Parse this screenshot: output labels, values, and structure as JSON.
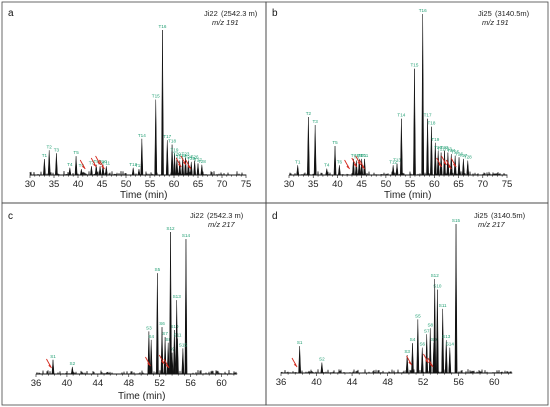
{
  "chart_data": [
    {
      "panel": "a",
      "type": "line",
      "sample": "Ji22",
      "depth": "(2542.3 m)",
      "ion": "m/z 191",
      "xlabel": "Time (min)",
      "xlim": [
        30,
        75
      ],
      "x_ticks": [
        30,
        35,
        40,
        45,
        50,
        55,
        60,
        65,
        70,
        75
      ],
      "x_tick_labels": [
        "30",
        "35",
        "40",
        "45",
        "50",
        "55",
        "60",
        "65",
        "70",
        "75"
      ],
      "y_scale": "relative abundance",
      "peaks": [
        {
          "label": "T1",
          "x": 33.0,
          "y": 0.11
        },
        {
          "label": "T2",
          "x": 34.0,
          "y": 0.17
        },
        {
          "label": "T3",
          "x": 35.5,
          "y": 0.15
        },
        {
          "label": "T4",
          "x": 38.3,
          "y": 0.05
        },
        {
          "label": "T5",
          "x": 39.6,
          "y": 0.13
        },
        {
          "label": "T6",
          "x": 40.7,
          "y": 0.04
        },
        {
          "label": "T7",
          "x": 42.8,
          "y": 0.06
        },
        {
          "label": "T8",
          "x": 43.8,
          "y": 0.07
        },
        {
          "label": "T9",
          "x": 44.6,
          "y": 0.06
        },
        {
          "label": "T10",
          "x": 45.2,
          "y": 0.07
        },
        {
          "label": "T11",
          "x": 45.9,
          "y": 0.06
        },
        {
          "label": "T12",
          "x": 51.5,
          "y": 0.05
        },
        {
          "label": "T13",
          "x": 52.7,
          "y": 0.04
        },
        {
          "label": "T14",
          "x": 53.3,
          "y": 0.25
        },
        {
          "label": "T15",
          "x": 56.2,
          "y": 0.52
        },
        {
          "label": "T16",
          "x": 57.6,
          "y": 1.0
        },
        {
          "label": "T17",
          "x": 58.6,
          "y": 0.24
        },
        {
          "label": "T18",
          "x": 59.6,
          "y": 0.21
        },
        {
          "label": "T19",
          "x": 60.1,
          "y": 0.15
        },
        {
          "label": "T20",
          "x": 60.6,
          "y": 0.12
        },
        {
          "label": "T21",
          "x": 61.2,
          "y": 0.1
        },
        {
          "label": "T22",
          "x": 61.8,
          "y": 0.11
        },
        {
          "label": "T23",
          "x": 62.4,
          "y": 0.12
        },
        {
          "label": "T24",
          "x": 63.0,
          "y": 0.1
        },
        {
          "label": "T25",
          "x": 63.6,
          "y": 0.09
        },
        {
          "label": "T26",
          "x": 64.3,
          "y": 0.1
        },
        {
          "label": "T27",
          "x": 65.0,
          "y": 0.08
        },
        {
          "label": "T28",
          "x": 65.8,
          "y": 0.07
        }
      ],
      "arrows_at": [
        41.5,
        43.8,
        44.7,
        45.5,
        61.5,
        62.5,
        63.5
      ]
    },
    {
      "panel": "b",
      "type": "line",
      "sample": "Ji25",
      "depth": "(3140.5m)",
      "ion": "m/z 191",
      "xlabel": "Time (min)",
      "xlim": [
        30,
        75
      ],
      "x_ticks": [
        30,
        35,
        40,
        45,
        50,
        55,
        60,
        65,
        70,
        75
      ],
      "x_tick_labels": [
        "30",
        "35",
        "40",
        "45",
        "50",
        "55",
        "60",
        "65",
        "70",
        "75"
      ],
      "y_scale": "relative abundance",
      "peaks": [
        {
          "label": "T1",
          "x": 31.8,
          "y": 0.06
        },
        {
          "label": "T2",
          "x": 34.0,
          "y": 0.36
        },
        {
          "label": "T3",
          "x": 35.4,
          "y": 0.31
        },
        {
          "label": "T4",
          "x": 37.8,
          "y": 0.04
        },
        {
          "label": "T5",
          "x": 39.5,
          "y": 0.18
        },
        {
          "label": "T6",
          "x": 40.4,
          "y": 0.06
        },
        {
          "label": "T7",
          "x": 43.3,
          "y": 0.1
        },
        {
          "label": "T8",
          "x": 43.9,
          "y": 0.09
        },
        {
          "label": "T9",
          "x": 44.5,
          "y": 0.1
        },
        {
          "label": "T10",
          "x": 45.0,
          "y": 0.1
        },
        {
          "label": "T11",
          "x": 45.6,
          "y": 0.1
        },
        {
          "label": "T12",
          "x": 51.5,
          "y": 0.06
        },
        {
          "label": "T13",
          "x": 52.3,
          "y": 0.07
        },
        {
          "label": "T14",
          "x": 53.2,
          "y": 0.35
        },
        {
          "label": "T15",
          "x": 55.9,
          "y": 0.66
        },
        {
          "label": "T16",
          "x": 57.6,
          "y": 1.0
        },
        {
          "label": "T17",
          "x": 58.6,
          "y": 0.35
        },
        {
          "label": "T18",
          "x": 59.4,
          "y": 0.3
        },
        {
          "label": "T19",
          "x": 60.2,
          "y": 0.2
        },
        {
          "label": "T20",
          "x": 60.8,
          "y": 0.15
        },
        {
          "label": "T21",
          "x": 61.4,
          "y": 0.14
        },
        {
          "label": "T22",
          "x": 62.1,
          "y": 0.15
        },
        {
          "label": "T23",
          "x": 62.8,
          "y": 0.14
        },
        {
          "label": "T24",
          "x": 63.5,
          "y": 0.13
        },
        {
          "label": "T25",
          "x": 64.3,
          "y": 0.12
        },
        {
          "label": "T26",
          "x": 65.1,
          "y": 0.11
        },
        {
          "label": "T27",
          "x": 66.0,
          "y": 0.1
        },
        {
          "label": "T28",
          "x": 66.9,
          "y": 0.09
        }
      ],
      "arrows_at": [
        42.5,
        44.0,
        44.8,
        45.6,
        61.5,
        62.5,
        63.5,
        64.5
      ]
    },
    {
      "panel": "c",
      "type": "line",
      "sample": "Ji22",
      "depth": "(2542.3 m)",
      "ion": "m/z 217",
      "xlabel": "Time (min)",
      "xlim": [
        36,
        62
      ],
      "x_ticks": [
        36,
        40,
        44,
        48,
        52,
        56,
        60
      ],
      "x_tick_labels": [
        "36",
        "40",
        "44",
        "48",
        "52",
        "56",
        "60"
      ],
      "y_scale": "relative abundance",
      "peaks": [
        {
          "label": "S1",
          "x": 38.2,
          "y": 0.1
        },
        {
          "label": "S2",
          "x": 40.7,
          "y": 0.05
        },
        {
          "label": "S3",
          "x": 50.6,
          "y": 0.3
        },
        {
          "label": "S4",
          "x": 50.9,
          "y": 0.24
        },
        {
          "label": "S5",
          "x": 51.7,
          "y": 0.71
        },
        {
          "label": "S6",
          "x": 52.3,
          "y": 0.33
        },
        {
          "label": "S7",
          "x": 52.7,
          "y": 0.26
        },
        {
          "label": "S8",
          "x": 53.1,
          "y": 0.22
        },
        {
          "label": "S9",
          "x": 53.6,
          "y": 0.15
        },
        {
          "label": "S10",
          "x": 53.9,
          "y": 0.31
        },
        {
          "label": "S11",
          "x": 54.3,
          "y": 0.25
        },
        {
          "label": "S12",
          "x": 53.4,
          "y": 1.0
        },
        {
          "label": "S13",
          "x": 54.2,
          "y": 0.52
        },
        {
          "label": "S14",
          "x": 55.4,
          "y": 0.95
        },
        {
          "label": "S15",
          "x": 55.0,
          "y": 0.18
        }
      ],
      "arrows_at": [
        38.0,
        50.8,
        52.6,
        53.2
      ]
    },
    {
      "panel": "d",
      "type": "line",
      "sample": "Ji25",
      "depth": "(3140.5m)",
      "ion": "m/z 217",
      "xlabel": "Time (min)",
      "xlim": [
        36,
        62
      ],
      "x_ticks": [
        36,
        40,
        44,
        48,
        52,
        56,
        60
      ],
      "x_tick_labels": [
        "36",
        "40",
        "44",
        "48",
        "52",
        "56",
        "60"
      ],
      "y_scale": "relative abundance",
      "peaks": [
        {
          "label": "S1",
          "x": 38.1,
          "y": 0.18
        },
        {
          "label": "S2",
          "x": 40.6,
          "y": 0.07
        },
        {
          "label": "S3",
          "x": 50.2,
          "y": 0.12
        },
        {
          "label": "S4",
          "x": 50.8,
          "y": 0.2
        },
        {
          "label": "S5",
          "x": 51.4,
          "y": 0.36
        },
        {
          "label": "S6",
          "x": 51.9,
          "y": 0.17
        },
        {
          "label": "S7",
          "x": 52.4,
          "y": 0.26
        },
        {
          "label": "S8",
          "x": 52.8,
          "y": 0.3
        },
        {
          "label": "S9",
          "x": 53.2,
          "y": 0.2
        },
        {
          "label": "S10",
          "x": 53.6,
          "y": 0.56
        },
        {
          "label": "S11",
          "x": 54.2,
          "y": 0.43
        },
        {
          "label": "S12",
          "x": 53.3,
          "y": 0.63
        },
        {
          "label": "S13",
          "x": 54.6,
          "y": 0.22
        },
        {
          "label": "S14",
          "x": 55.0,
          "y": 0.17
        },
        {
          "label": "S15",
          "x": 55.7,
          "y": 1.0
        }
      ],
      "arrows_at": [
        37.8,
        50.7,
        52.6,
        53.1
      ]
    }
  ],
  "colors": {
    "trace": "#111111",
    "peak_label": "#1f9e72",
    "arrow": "#d42a1e",
    "frame": "#444444"
  }
}
